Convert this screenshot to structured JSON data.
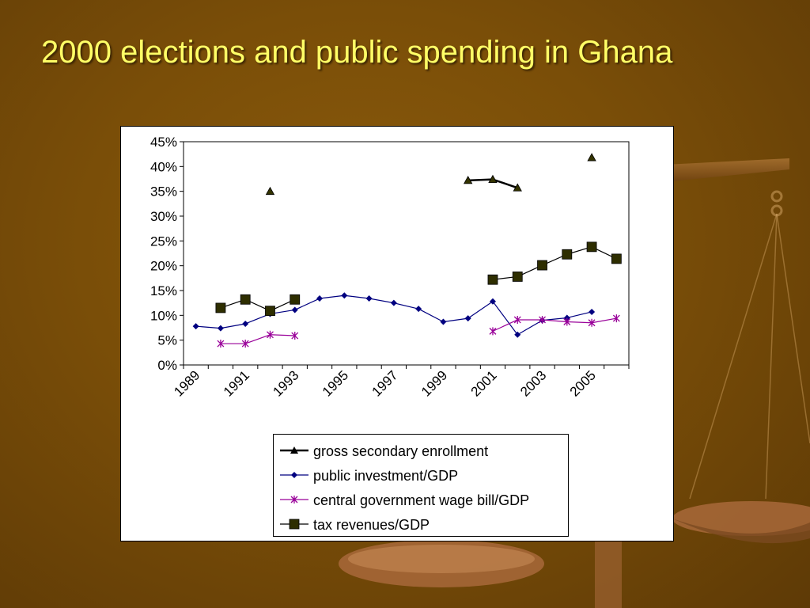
{
  "slide": {
    "title": "2000 elections and public spending in Ghana"
  },
  "colors": {
    "title": "#ffff66",
    "gross_secondary_enrollment": "#000000",
    "public_investment_gdp": "#000080",
    "central_government_wage_bill_gdp": "#990099",
    "tax_revenues_gdp": "#2e2e00"
  },
  "chart_data": {
    "type": "line",
    "title": "",
    "xlabel": "",
    "ylabel": "",
    "x_start": 1989,
    "x_tick_labels": [
      "1989",
      "1991",
      "1993",
      "1995",
      "1997",
      "1999",
      "2001",
      "2003",
      "2005"
    ],
    "y_tick_labels": [
      "0%",
      "5%",
      "10%",
      "15%",
      "20%",
      "25%",
      "30%",
      "35%",
      "40%",
      "45%"
    ],
    "ylim": [
      0,
      45
    ],
    "grid": false,
    "legend_position": "bottom",
    "series": [
      {
        "name": "gross secondary enrollment",
        "marker": "triangle",
        "x": [
          1992,
          2000,
          2001,
          2002,
          2005
        ],
        "values": [
          35,
          37.2,
          37.4,
          35.7,
          41.8
        ]
      },
      {
        "name": "public investment/GDP",
        "marker": "diamond",
        "x": [
          1989,
          1990,
          1991,
          1992,
          1993,
          1994,
          1995,
          1996,
          1997,
          1998,
          1999,
          2000,
          2001,
          2002,
          2003,
          2004,
          2005
        ],
        "values": [
          7.8,
          7.4,
          8.3,
          10.3,
          11.1,
          13.4,
          14.0,
          13.4,
          12.5,
          11.3,
          8.7,
          9.4,
          12.8,
          6.1,
          9.0,
          9.5,
          10.7
        ]
      },
      {
        "name": "central government wage bill/GDP",
        "marker": "asterisk",
        "x": [
          1990,
          1991,
          1992,
          1993,
          2001,
          2002,
          2003,
          2004,
          2005,
          2006
        ],
        "values": [
          4.3,
          4.3,
          6.1,
          5.9,
          6.8,
          9.1,
          9.1,
          8.7,
          8.5,
          9.4
        ]
      },
      {
        "name": "tax revenues/GDP",
        "marker": "square",
        "x": [
          1990,
          1991,
          1992,
          1993,
          2001,
          2002,
          2003,
          2004,
          2005,
          2006
        ],
        "values": [
          11.5,
          13.2,
          10.9,
          13.2,
          17.2,
          17.8,
          20.1,
          22.3,
          23.8,
          21.4
        ]
      }
    ]
  }
}
